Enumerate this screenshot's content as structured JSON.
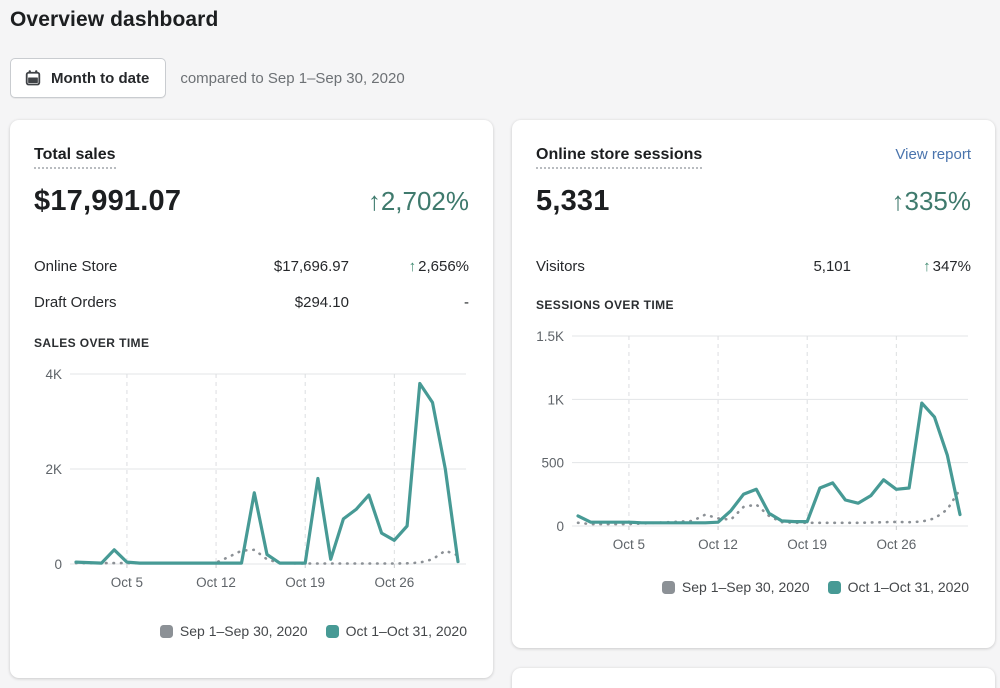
{
  "page": {
    "title": "Overview dashboard"
  },
  "controls": {
    "date_range_label": "Month to date",
    "compare_text": "compared to Sep 1–Sep 30, 2020"
  },
  "colors": {
    "accent_teal": "#479a95",
    "previous_gray": "#8c9196",
    "positive_green": "#3f7a6d",
    "link_blue": "#4a74ad"
  },
  "sales_card": {
    "title": "Total sales",
    "total": "$17,991.07",
    "change": "↑2,702%",
    "rows": [
      {
        "label": "Online Store",
        "value": "$17,696.97",
        "delta_arrow": "↑",
        "delta": "2,656%"
      },
      {
        "label": "Draft Orders",
        "value": "$294.10",
        "delta_arrow": "",
        "delta": "-"
      }
    ],
    "section_label": "SALES OVER TIME"
  },
  "sessions_card": {
    "title": "Online store sessions",
    "view_report": "View report",
    "total": "5,331",
    "change": "↑335%",
    "rows": [
      {
        "label": "Visitors",
        "value": "5,101",
        "delta_arrow": "↑",
        "delta": "347%"
      }
    ],
    "section_label": "SESSIONS OVER TIME"
  },
  "legend": [
    {
      "label": "Sep 1–Sep 30, 2020",
      "color": "#8c9196"
    },
    {
      "label": "Oct 1–Oct 31, 2020",
      "color": "#479a95"
    }
  ],
  "chart_data": [
    {
      "type": "line",
      "title": "SALES OVER TIME",
      "ylim": [
        0,
        4000
      ],
      "y_ticks": [
        {
          "value": 0,
          "label": "0"
        },
        {
          "value": 2000,
          "label": "2K"
        },
        {
          "value": 4000,
          "label": "4K"
        }
      ],
      "x_ticks": [
        {
          "day": 5,
          "label": "Oct 5"
        },
        {
          "day": 12,
          "label": "Oct 12"
        },
        {
          "day": 19,
          "label": "Oct 19"
        },
        {
          "day": 26,
          "label": "Oct 26"
        }
      ],
      "x_range": "Oct 1 – Oct 31 (daily)",
      "grid": true,
      "legend_position": "bottom-right",
      "series": [
        {
          "name": "Sep 1–Sep 30, 2020",
          "color": "#8c9196",
          "dotted": true,
          "values": [
            20,
            20,
            20,
            20,
            20,
            20,
            20,
            20,
            20,
            20,
            20,
            30,
            150,
            280,
            300,
            100,
            20,
            15,
            10,
            10,
            10,
            10,
            10,
            10,
            10,
            10,
            15,
            30,
            100,
            280,
            180
          ]
        },
        {
          "name": "Oct 1–Oct 31, 2020",
          "color": "#479a95",
          "dotted": false,
          "values": [
            40,
            30,
            20,
            300,
            40,
            20,
            20,
            20,
            20,
            20,
            20,
            20,
            20,
            20,
            1500,
            200,
            20,
            20,
            20,
            1800,
            100,
            950,
            1150,
            1450,
            650,
            500,
            800,
            3800,
            3400,
            2000,
            50
          ]
        }
      ]
    },
    {
      "type": "line",
      "title": "SESSIONS OVER TIME",
      "ylim": [
        0,
        1500
      ],
      "y_ticks": [
        {
          "value": 0,
          "label": "0"
        },
        {
          "value": 500,
          "label": "500"
        },
        {
          "value": 1000,
          "label": "1K"
        },
        {
          "value": 1500,
          "label": "1.5K"
        }
      ],
      "x_ticks": [
        {
          "day": 5,
          "label": "Oct 5"
        },
        {
          "day": 12,
          "label": "Oct 12"
        },
        {
          "day": 19,
          "label": "Oct 19"
        },
        {
          "day": 26,
          "label": "Oct 26"
        }
      ],
      "x_range": "Oct 1 – Oct 31 (daily)",
      "grid": true,
      "legend_position": "bottom-right",
      "series": [
        {
          "name": "Sep 1–Sep 30, 2020",
          "color": "#8c9196",
          "dotted": true,
          "values": [
            25,
            15,
            15,
            15,
            15,
            20,
            25,
            30,
            35,
            40,
            90,
            60,
            50,
            150,
            170,
            80,
            30,
            25,
            25,
            25,
            25,
            25,
            25,
            28,
            30,
            32,
            30,
            35,
            60,
            130,
            290
          ]
        },
        {
          "name": "Oct 1–Oct 31, 2020",
          "color": "#479a95",
          "dotted": false,
          "values": [
            80,
            30,
            30,
            30,
            30,
            25,
            25,
            25,
            25,
            25,
            25,
            30,
            120,
            250,
            290,
            100,
            40,
            35,
            35,
            300,
            340,
            205,
            180,
            240,
            365,
            290,
            300,
            970,
            860,
            560,
            90
          ]
        }
      ]
    }
  ]
}
